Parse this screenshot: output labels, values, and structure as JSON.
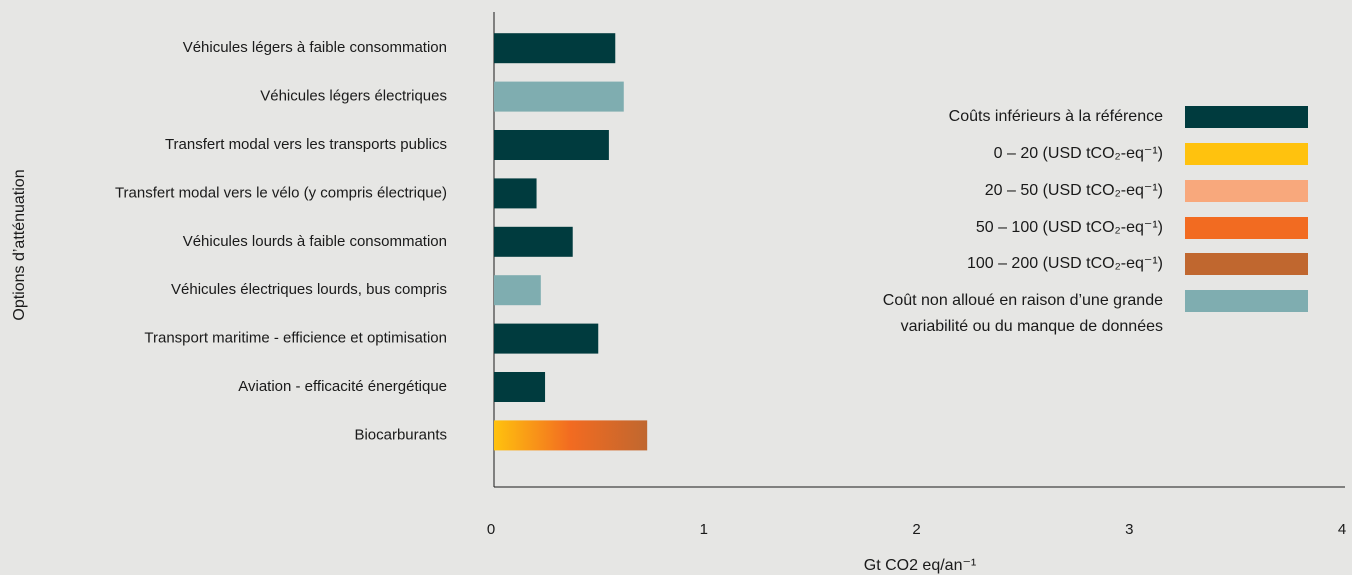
{
  "chart_data": {
    "type": "barh",
    "y_label": "Options d’atténuation",
    "x_label": "Gt CO2 eq/an⁻¹",
    "categories": [
      "Véhicules légers à faible consommation",
      "Véhicules légers électriques",
      "Transfert modal vers les transports publics",
      "Transfert modal vers le vélo (y compris électrique)",
      "Véhicules lourds à faible consommation",
      "Véhicules électriques lourds,  bus compris",
      "Transport maritime - efficience et optimisation",
      "Aviation - efficacité énergétique",
      "Biocarburants"
    ],
    "values": [
      0.57,
      0.61,
      0.54,
      0.2,
      0.37,
      0.22,
      0.49,
      0.24,
      0.72
    ],
    "colors": [
      "#003b3e",
      "#7fadb0",
      "#003b3e",
      "#003b3e",
      "#003b3e",
      "#7fadb0",
      "#003b3e",
      "#003b3e",
      [
        "#ffc20e",
        "#f26b21",
        "#c0672f"
      ]
    ],
    "xlim": [
      0,
      4
    ],
    "xticks": [
      0,
      1,
      2,
      3,
      4
    ],
    "legend": [
      {
        "name": "Coûts inférieurs à la référence",
        "color": "#003b3e"
      },
      {
        "name": "0 – 20 (USD tCO₂-eq⁻¹)",
        "color": "#ffc20e"
      },
      {
        "name": "20 – 50 (USD tCO₂-eq⁻¹)",
        "color": "#f8a87c"
      },
      {
        "name": "50 – 100 (USD tCO₂-eq⁻¹)",
        "color": "#f26b21"
      },
      {
        "name": "100 – 200 (USD tCO₂-eq⁻¹)",
        "color": "#c0672f"
      },
      {
        "name": [
          "Coût non alloué en raison d’une grande",
          "variabilité ou du manque de données"
        ],
        "color": "#7fadb0"
      }
    ]
  }
}
